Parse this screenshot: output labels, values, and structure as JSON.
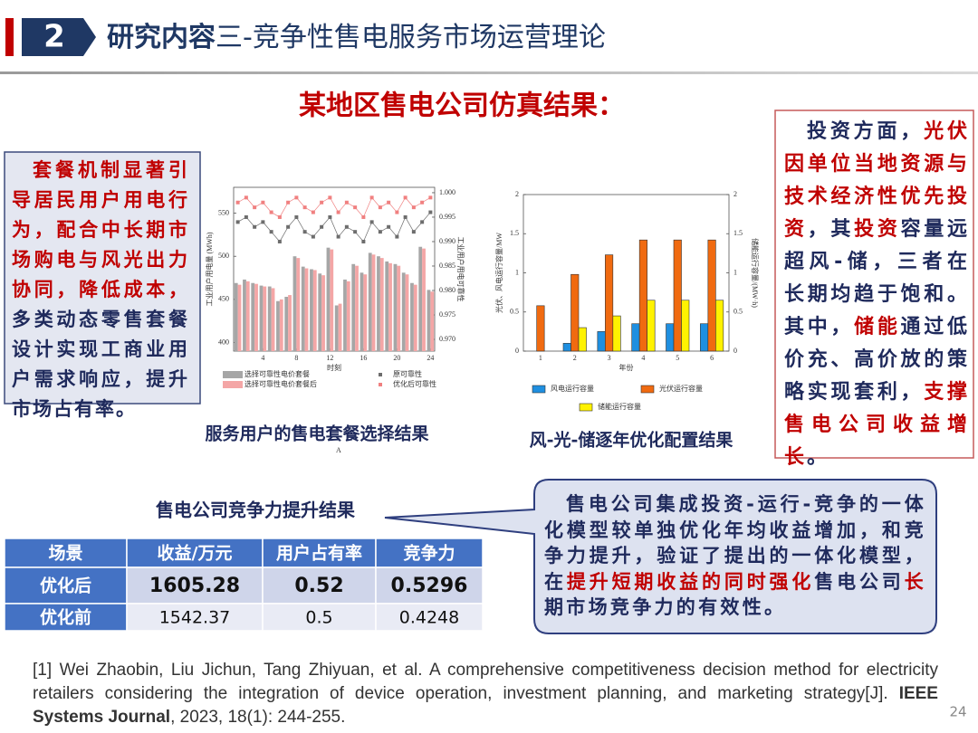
{
  "header": {
    "number": "2",
    "title_bold": "研究内容",
    "title_rest": "三-竞争性售电服务市场运营理论"
  },
  "headline": "某地区售电公司仿真结果：",
  "left_note": [
    {
      "text": "套餐机制显著引导居民用户用电行为，配合中长期市场购电与风光出力协同，降低成本，",
      "color": "#c00000"
    },
    {
      "text": "多类动态零售套餐设计实现工商业用户需求响应，提升市场占有率。",
      "color": "#1f2a5c"
    }
  ],
  "right_note": [
    {
      "text": "投资方面，",
      "color": "#1f2a5c"
    },
    {
      "text": "光伏因单位当地资源与技术经济性优先投资",
      "color": "#c00000"
    },
    {
      "text": "，其",
      "color": "#1f2a5c"
    },
    {
      "text": "投资",
      "color": "#c00000"
    },
    {
      "text": "容量远超风-储，三者在长期均趋于饱和。其中，",
      "color": "#1f2a5c"
    },
    {
      "text": "储能",
      "color": "#c00000"
    },
    {
      "text": "通过低价充、高价放的策略实现套利，",
      "color": "#1f2a5c"
    },
    {
      "text": "支撑售电公司收益增长",
      "color": "#c00000"
    },
    {
      "text": "。",
      "color": "#1f2a5c"
    }
  ],
  "chart_data": [
    {
      "type": "combo",
      "caption": "服务用户的售电套餐选择结果",
      "x_label": "时刻",
      "y_label": "工业用户用电量 (MWh)",
      "y2_label": "工业用户用电可靠性",
      "annotations": [
        "A"
      ],
      "x": [
        1,
        2,
        3,
        4,
        5,
        6,
        7,
        8,
        9,
        10,
        11,
        12,
        13,
        14,
        15,
        16,
        17,
        18,
        19,
        20,
        21,
        22,
        23,
        24
      ],
      "xlim": [
        0.5,
        24.5
      ],
      "xticks": [
        4,
        8,
        12,
        16,
        20,
        24
      ],
      "ylim": [
        390,
        580
      ],
      "yticks": [
        400,
        450,
        500,
        550
      ],
      "y2lim": [
        0.9676,
        1.0011
      ],
      "y2ticks": [
        {
          "value": 0.97,
          "label": "0.970"
        },
        0.975,
        {
          "value": 0.98,
          "label": "0.980"
        },
        0.985,
        {
          "value": 0.99,
          "label": "0.990"
        },
        0.995,
        {
          "value": 1.0,
          "label": "1.000"
        }
      ],
      "series": [
        {
          "name": "选择可靠性电价套餐",
          "kind": "bar",
          "color": "#a6a6a6",
          "values": [
            469,
            473,
            469,
            466,
            465,
            448,
            453,
            500,
            488,
            485,
            480,
            510,
            443,
            473,
            491,
            481,
            504,
            500,
            494,
            491,
            481,
            469,
            511,
            461
          ]
        },
        {
          "name": "选择可靠性电价套餐后",
          "kind": "bar",
          "color": "#f4a6a6",
          "values": [
            467,
            471,
            468,
            465,
            463,
            450,
            455,
            498,
            486,
            484,
            478,
            508,
            445,
            471,
            489,
            479,
            502,
            498,
            492,
            489,
            479,
            467,
            509,
            459
          ]
        },
        {
          "name": "原可靠性",
          "kind": "line",
          "axis": "y2",
          "color": "#6d6d6d",
          "values": [
            0.994,
            0.995,
            0.993,
            0.994,
            0.992,
            0.99,
            0.993,
            0.995,
            0.992,
            0.991,
            0.993,
            0.995,
            0.991,
            0.993,
            0.992,
            0.99,
            0.994,
            0.992,
            0.993,
            0.991,
            0.995,
            0.992,
            0.994,
            0.996
          ]
        },
        {
          "name": "优化后可靠性",
          "kind": "line",
          "axis": "y2",
          "color": "#f08080",
          "values": [
            0.998,
            0.999,
            0.997,
            0.998,
            0.996,
            0.995,
            0.998,
            0.999,
            0.997,
            0.996,
            0.998,
            0.999,
            0.996,
            0.998,
            0.997,
            0.995,
            0.999,
            0.997,
            0.998,
            0.996,
            0.999,
            0.997,
            0.998,
            0.999
          ]
        }
      ]
    },
    {
      "type": "bar",
      "caption": "风-光-储逐年优化配置结果",
      "x_label": "年份",
      "y_label": "光伏、风电运行容量/MW",
      "y2_label": "储能运行容量/(MW·h)",
      "x": [
        1,
        2,
        3,
        4,
        5,
        6
      ],
      "xlim": [
        0.5,
        6.5
      ],
      "xticks": [
        1,
        2,
        3,
        4,
        5,
        6
      ],
      "ylim": [
        0,
        2
      ],
      "yticks": [
        0,
        0.5,
        1,
        1.5,
        2
      ],
      "y2lim": [
        0,
        2
      ],
      "y2ticks": [
        0,
        0.5,
        1,
        1.5,
        2
      ],
      "series": [
        {
          "name": "风电运行容量",
          "kind": "bar",
          "color": "#1f8fe0",
          "values": [
            0,
            0.1,
            0.25,
            0.35,
            0.35,
            0.35
          ]
        },
        {
          "name": "光伏运行容量",
          "kind": "bar",
          "color": "#f06a10",
          "values": [
            0.58,
            0.98,
            1.23,
            1.42,
            1.42,
            1.42
          ]
        },
        {
          "name": "储能运行容量",
          "kind": "bar",
          "axis": "y2",
          "color": "#fff200",
          "values": [
            0,
            0.3,
            0.45,
            0.65,
            0.65,
            0.65
          ]
        }
      ]
    }
  ],
  "table": {
    "title": "售电公司竞争力提升结果",
    "header": [
      "场景",
      "收益/万元",
      "用户占有率",
      "竞争力"
    ],
    "rows": [
      [
        "优化后",
        1605.28,
        0.52,
        0.5296
      ],
      [
        "优化前",
        1542.37,
        0.5,
        0.4248
      ]
    ]
  },
  "callout": [
    {
      "text": "售电公司集成投资-运行-竞争的一体化模型较单独优化年均收益增加，和竞争力提升，验证了提出的一体化模型，在",
      "color": "#1f2a5c"
    },
    {
      "text": "提升短期收益的同时强化",
      "color": "#c00000"
    },
    {
      "text": "售电公司",
      "color": "#1f2a5c"
    },
    {
      "text": "长",
      "color": "#c00000"
    },
    {
      "text": "期市场竞争力的有效性。",
      "color": "#1f2a5c"
    }
  ],
  "reference": [
    {
      "text": "[1]  Wei Zhaobin, Liu Jichun, Tang Zhiyuan, et al. A comprehensive competitiveness decision method for electricity retailers considering the integration of device operation, investment planning, and marketing strategy[J]. ",
      "bold": false
    },
    {
      "text": "IEEE Systems Journal",
      "bold": true
    },
    {
      "text": ", 2023, 18(1): 244-255.",
      "bold": false
    }
  ],
  "page_number": "24"
}
